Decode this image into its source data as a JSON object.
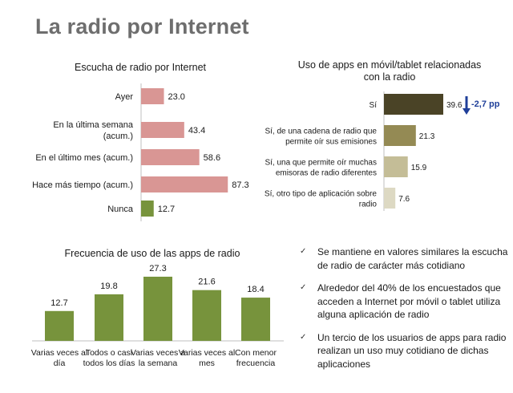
{
  "page": {
    "title": "La radio por Internet"
  },
  "colors": {
    "pink": "#d99694",
    "green": "#77933c",
    "apps_shades": [
      "#4a4326",
      "#948a54",
      "#c4bd97",
      "#ddd9c3"
    ],
    "drop_arrow": "#1f3f99"
  },
  "chart_data": [
    {
      "id": "listening",
      "type": "bar",
      "orientation": "horizontal",
      "title": "Escucha de radio por Internet",
      "categories": [
        "Ayer",
        "En la última semana (acum.)",
        "En el último mes (acum.)",
        "Hace más tiempo (acum.)",
        "Nunca"
      ],
      "category_lines": [
        [
          "Ayer"
        ],
        [
          "En la última semana",
          "(acum.)"
        ],
        [
          "En el último mes (acum.)"
        ],
        [
          "Hace más tiempo (acum.)"
        ],
        [
          "Nunca"
        ]
      ],
      "values": [
        23.0,
        43.4,
        58.6,
        87.3,
        12.7
      ],
      "value_labels": [
        "23.0",
        "43.4",
        "58.6",
        "87.3",
        "12.7"
      ],
      "bar_colors": [
        "#d99694",
        "#d99694",
        "#d99694",
        "#d99694",
        "#77933c"
      ],
      "xlim": [
        0,
        100
      ],
      "grid": false
    },
    {
      "id": "apps",
      "type": "bar",
      "orientation": "horizontal",
      "title": "Uso de apps en móvil/tablet relacionadas con la radio",
      "title_lines": [
        "Uso de apps en móvil/tablet relacionadas",
        "con la radio"
      ],
      "categories": [
        "Sí",
        "Sí, de una cadena de radio que permite oír sus emisiones",
        "Sí, una que permite oír muchas emisoras de radio diferentes",
        "Sí, otro tipo de aplicación sobre radio"
      ],
      "category_lines": [
        [
          "Sí"
        ],
        [
          "Sí, de una cadena de radio que",
          "permite oír sus emisiones"
        ],
        [
          "Sí, una que permite oír muchas",
          "emisoras de radio diferentes"
        ],
        [
          "Sí, otro tipo de aplicación sobre",
          "radio"
        ]
      ],
      "values": [
        39.6,
        21.3,
        15.9,
        7.6
      ],
      "value_labels": [
        "39.6",
        "21.3",
        "15.9",
        "7.6"
      ],
      "bar_colors": [
        "#4a4326",
        "#948a54",
        "#c4bd97",
        "#ddd9c3"
      ],
      "xlim": [
        0,
        50
      ],
      "grid": false,
      "annotation": {
        "text": "-2,7 pp",
        "category": "Sí"
      }
    },
    {
      "id": "frequency",
      "type": "bar",
      "orientation": "vertical",
      "title": "Frecuencia de uso de las apps de radio",
      "categories": [
        "Varias veces al día",
        "Todos o casi todos los días",
        "Varias veces a la semana",
        "Varias veces al mes",
        "Con menor frecuencia"
      ],
      "category_lines": [
        [
          "Varias veces al",
          "día"
        ],
        [
          "Todos o casi",
          "todos los días"
        ],
        [
          "Varias veces a",
          "la semana"
        ],
        [
          "Varias veces al",
          "mes"
        ],
        [
          "Con menor",
          "frecuencia"
        ]
      ],
      "values": [
        12.7,
        19.8,
        27.3,
        21.6,
        18.4
      ],
      "value_labels": [
        "12.7",
        "19.8",
        "27.3",
        "21.6",
        "18.4"
      ],
      "bar_colors": [
        "#77933c",
        "#77933c",
        "#77933c",
        "#77933c",
        "#77933c"
      ],
      "ylim": [
        0,
        30
      ],
      "grid": false
    }
  ],
  "notes": {
    "items": [
      "Se mantiene en valores similares la escucha de radio de carácter más cotidiano",
      "Alrededor del 40% de los encuestados que acceden a Internet por móvil o tablet utiliza alguna aplicación de radio",
      "Un tercio de los usuarios de apps para radio realizan un uso muy cotidiano de dichas aplicaciones"
    ]
  }
}
